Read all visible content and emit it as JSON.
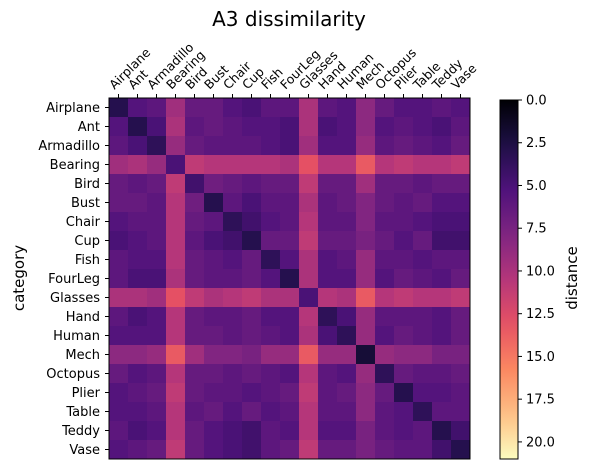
{
  "chart_data": {
    "type": "heatmap",
    "title": "A3 dissimilarity",
    "ylabel": "category",
    "xlabel": "",
    "categories": [
      "Airplane",
      "Ant",
      "Armadillo",
      "Bearing",
      "Bird",
      "Bust",
      "Chair",
      "Cup",
      "Fish",
      "FourLeg",
      "Glasses",
      "Hand",
      "Human",
      "Mech",
      "Octopus",
      "Plier",
      "Table",
      "Teddy",
      "Vase"
    ],
    "block_means": [
      [
        3.0,
        5.5,
        6.0,
        9.5,
        6.5,
        6.5,
        5.5,
        5.0,
        6.0,
        6.0,
        10.0,
        6.0,
        5.5,
        8.5,
        6.5,
        5.5,
        5.5,
        6.0,
        5.5
      ],
      [
        5.5,
        3.0,
        5.0,
        10.0,
        6.0,
        6.5,
        6.0,
        5.5,
        5.5,
        5.0,
        10.0,
        5.0,
        5.5,
        8.5,
        5.5,
        6.0,
        5.5,
        5.0,
        6.0
      ],
      [
        6.0,
        5.0,
        3.5,
        9.0,
        6.5,
        6.0,
        6.0,
        6.0,
        5.5,
        5.0,
        9.5,
        5.5,
        5.5,
        9.0,
        6.0,
        6.5,
        6.0,
        5.5,
        6.5
      ],
      [
        9.5,
        10.0,
        9.0,
        5.0,
        11.0,
        10.5,
        10.5,
        10.5,
        10.5,
        10.0,
        13.0,
        10.5,
        10.5,
        13.5,
        10.5,
        11.0,
        10.5,
        10.5,
        11.0
      ],
      [
        6.5,
        6.0,
        6.5,
        11.0,
        4.5,
        7.0,
        6.5,
        6.0,
        6.5,
        6.5,
        11.0,
        6.5,
        6.5,
        9.5,
        6.5,
        6.5,
        6.0,
        6.5,
        6.5
      ],
      [
        6.5,
        6.5,
        6.0,
        10.5,
        7.0,
        3.0,
        6.0,
        5.0,
        6.0,
        6.0,
        10.0,
        6.0,
        6.5,
        8.0,
        6.5,
        6.0,
        6.5,
        5.5,
        5.5
      ],
      [
        5.5,
        6.0,
        6.0,
        10.5,
        6.5,
        6.0,
        3.5,
        4.5,
        5.5,
        6.0,
        10.5,
        6.0,
        6.0,
        8.0,
        6.0,
        6.0,
        5.5,
        5.0,
        5.0
      ],
      [
        5.0,
        5.5,
        6.0,
        10.5,
        6.0,
        5.0,
        4.5,
        3.0,
        6.5,
        6.5,
        11.0,
        6.5,
        6.5,
        7.5,
        6.5,
        5.5,
        6.5,
        4.5,
        4.5
      ],
      [
        6.0,
        5.5,
        5.5,
        10.5,
        6.5,
        6.0,
        5.5,
        6.5,
        3.5,
        5.5,
        10.0,
        5.5,
        6.0,
        9.0,
        6.0,
        6.0,
        5.5,
        6.0,
        6.0
      ],
      [
        6.0,
        5.0,
        5.0,
        10.0,
        6.5,
        6.0,
        6.0,
        6.5,
        5.5,
        3.0,
        10.0,
        5.5,
        5.5,
        9.0,
        5.5,
        6.5,
        6.0,
        5.5,
        6.5
      ],
      [
        10.0,
        10.0,
        9.5,
        13.0,
        11.0,
        10.0,
        10.5,
        11.0,
        10.0,
        10.0,
        5.0,
        10.5,
        10.0,
        13.5,
        10.5,
        11.0,
        10.5,
        10.5,
        11.0
      ],
      [
        6.0,
        5.0,
        5.5,
        10.5,
        6.5,
        6.0,
        6.0,
        6.5,
        5.5,
        5.5,
        10.5,
        3.5,
        5.0,
        9.0,
        6.0,
        6.0,
        6.0,
        5.5,
        6.5
      ],
      [
        5.5,
        5.5,
        5.5,
        10.5,
        6.5,
        6.5,
        6.0,
        6.5,
        6.0,
        5.5,
        10.0,
        5.0,
        3.5,
        9.0,
        5.5,
        6.5,
        6.0,
        5.5,
        6.5
      ],
      [
        8.5,
        8.5,
        9.0,
        13.5,
        9.5,
        8.0,
        8.0,
        7.5,
        9.0,
        9.0,
        13.5,
        9.0,
        9.0,
        2.0,
        9.0,
        8.5,
        8.5,
        7.5,
        7.5
      ],
      [
        6.5,
        5.5,
        6.0,
        10.5,
        6.5,
        6.5,
        6.0,
        6.5,
        6.0,
        5.5,
        10.5,
        6.0,
        5.5,
        9.0,
        3.5,
        6.5,
        6.0,
        6.0,
        6.5
      ],
      [
        5.5,
        6.0,
        6.5,
        11.0,
        6.5,
        6.0,
        6.0,
        5.5,
        6.0,
        6.5,
        11.0,
        6.0,
        6.5,
        8.5,
        6.5,
        3.0,
        5.5,
        5.5,
        6.0
      ],
      [
        5.5,
        5.5,
        6.0,
        10.5,
        6.0,
        6.5,
        5.5,
        6.5,
        5.5,
        6.0,
        10.5,
        6.0,
        6.0,
        8.5,
        6.0,
        5.5,
        3.5,
        6.0,
        6.0
      ],
      [
        6.0,
        5.0,
        5.5,
        10.5,
        6.5,
        5.5,
        5.0,
        4.5,
        6.0,
        5.5,
        10.5,
        5.5,
        5.5,
        7.5,
        6.0,
        5.5,
        6.0,
        3.0,
        4.5
      ],
      [
        5.5,
        6.0,
        6.5,
        11.0,
        6.5,
        5.5,
        5.0,
        4.5,
        6.0,
        6.5,
        11.0,
        6.5,
        6.5,
        7.5,
        6.5,
        6.0,
        6.0,
        4.5,
        3.0
      ]
    ],
    "vmin": 0,
    "vmax": 21,
    "colormap": "magma_r",
    "colorbar": {
      "label": "distance",
      "ticks": [
        "0.0",
        "2.5",
        "5.0",
        "7.5",
        "10.0",
        "12.5",
        "15.0",
        "17.5",
        "20.0"
      ],
      "tick_values": [
        0,
        2.5,
        5,
        7.5,
        10,
        12.5,
        15,
        17.5,
        20
      ]
    },
    "grid": false,
    "legend": "none"
  }
}
